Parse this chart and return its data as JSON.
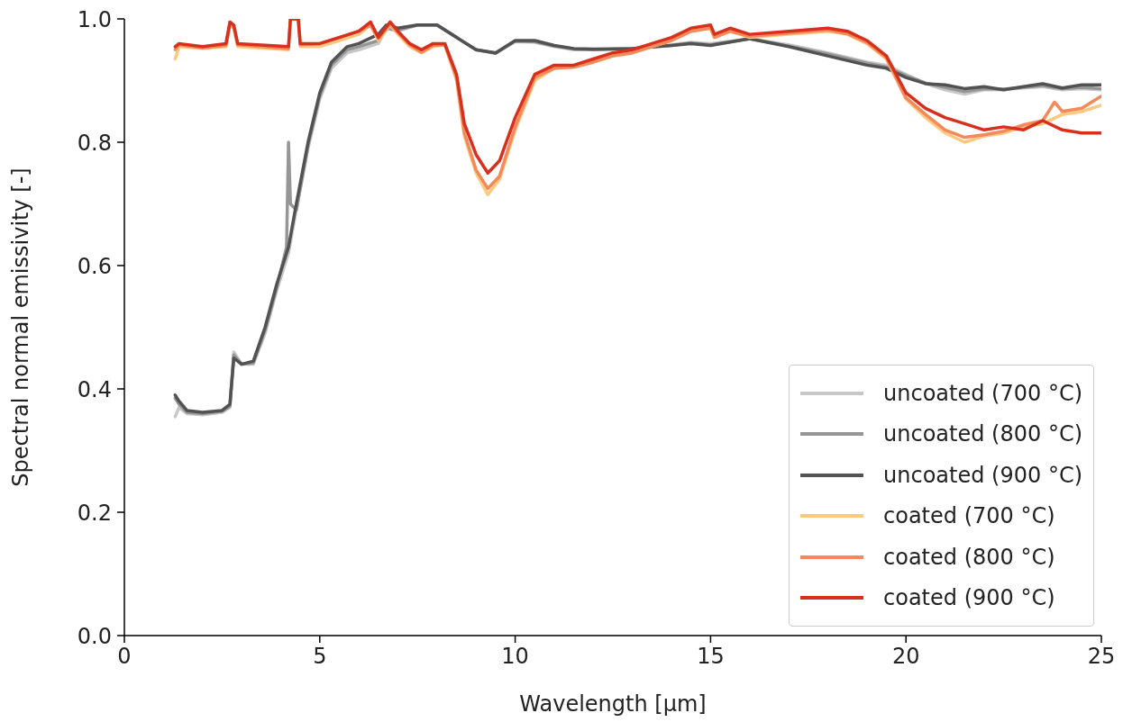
{
  "chart_data": {
    "type": "line",
    "xlabel": "Wavelength [µm]",
    "ylabel": "Spectral normal emissivity [-]",
    "xlim": [
      0,
      25
    ],
    "ylim": [
      0,
      1
    ],
    "xticks": [
      0,
      5,
      10,
      15,
      20,
      25
    ],
    "yticks": [
      {
        "value": 0,
        "label": "0.0"
      },
      0.2,
      0.4,
      0.6,
      0.8,
      {
        "value": 1,
        "label": "1.0"
      }
    ],
    "grid": false,
    "legend": "bottom right",
    "marker": "none",
    "line_style": "solid",
    "series": [
      {
        "name": "uncoated (700 °C)",
        "color": "#c8c8c8",
        "x": [
          1.3,
          1.4,
          1.6,
          2.0,
          2.5,
          2.7,
          2.8,
          3.0,
          3.3,
          3.6,
          3.9,
          4.2,
          4.4,
          4.7,
          5.0,
          5.3,
          5.7,
          6.0,
          6.5,
          6.7,
          7.0,
          7.5,
          8.0,
          8.5,
          9.0,
          9.5,
          10.0,
          10.5,
          11.0,
          11.5,
          12,
          13,
          14,
          14.5,
          15,
          16,
          17,
          18,
          19,
          19.5,
          20,
          20.5,
          21,
          21.5,
          22,
          22.5,
          23,
          23.5,
          24,
          24.5,
          25
        ],
        "values": [
          0.355,
          0.37,
          0.36,
          0.358,
          0.362,
          0.37,
          0.46,
          0.44,
          0.44,
          0.49,
          0.56,
          0.62,
          0.69,
          0.79,
          0.87,
          0.92,
          0.945,
          0.95,
          0.96,
          0.985,
          0.98,
          0.99,
          0.99,
          0.97,
          0.95,
          0.945,
          0.963,
          0.962,
          0.955,
          0.95,
          0.95,
          0.952,
          0.958,
          0.962,
          0.96,
          0.968,
          0.958,
          0.945,
          0.93,
          0.925,
          0.91,
          0.895,
          0.885,
          0.878,
          0.885,
          0.885,
          0.888,
          0.89,
          0.885,
          0.887,
          0.885
        ]
      },
      {
        "name": "uncoated (800 °C)",
        "color": "#969696",
        "x": [
          1.3,
          1.4,
          1.6,
          2.0,
          2.5,
          2.7,
          2.8,
          3.0,
          3.3,
          3.6,
          3.9,
          4.15,
          4.2,
          4.25,
          4.4,
          4.7,
          5.0,
          5.3,
          5.7,
          6.0,
          6.5,
          6.7,
          7.0,
          7.5,
          8.0,
          8.5,
          9.0,
          9.5,
          10.0,
          10.5,
          11.0,
          11.5,
          12,
          13,
          14,
          14.5,
          15,
          16,
          17,
          18,
          19,
          19.5,
          20,
          20.5,
          21,
          21.5,
          22,
          22.5,
          23,
          23.5,
          24,
          24.5,
          25
        ],
        "values": [
          0.385,
          0.375,
          0.362,
          0.36,
          0.364,
          0.372,
          0.455,
          0.44,
          0.442,
          0.495,
          0.565,
          0.63,
          0.8,
          0.7,
          0.69,
          0.795,
          0.875,
          0.925,
          0.95,
          0.955,
          0.965,
          0.985,
          0.982,
          0.99,
          0.99,
          0.97,
          0.95,
          0.944,
          0.964,
          0.963,
          0.956,
          0.951,
          0.95,
          0.952,
          0.957,
          0.961,
          0.958,
          0.968,
          0.956,
          0.943,
          0.928,
          0.922,
          0.908,
          0.896,
          0.889,
          0.882,
          0.887,
          0.886,
          0.889,
          0.892,
          0.887,
          0.889,
          0.887
        ]
      },
      {
        "name": "uncoated (900 °C)",
        "color": "#525252",
        "x": [
          1.3,
          1.4,
          1.6,
          2.0,
          2.5,
          2.7,
          2.8,
          3.0,
          3.3,
          3.6,
          3.9,
          4.2,
          4.4,
          4.7,
          5.0,
          5.3,
          5.7,
          6.0,
          6.5,
          6.7,
          7.0,
          7.5,
          8.0,
          8.5,
          9.0,
          9.5,
          10.0,
          10.5,
          11.0,
          11.5,
          12,
          13,
          14,
          14.5,
          15,
          16,
          17,
          18,
          19,
          19.5,
          20,
          20.5,
          21,
          21.5,
          22,
          22.5,
          23,
          23.5,
          24,
          24.5,
          25
        ],
        "values": [
          0.39,
          0.38,
          0.365,
          0.362,
          0.365,
          0.375,
          0.45,
          0.44,
          0.445,
          0.5,
          0.57,
          0.63,
          0.7,
          0.8,
          0.88,
          0.93,
          0.955,
          0.96,
          0.975,
          0.99,
          0.985,
          0.99,
          0.99,
          0.97,
          0.95,
          0.945,
          0.965,
          0.965,
          0.957,
          0.952,
          0.951,
          0.952,
          0.957,
          0.96,
          0.957,
          0.968,
          0.955,
          0.94,
          0.925,
          0.92,
          0.905,
          0.895,
          0.893,
          0.887,
          0.89,
          0.885,
          0.89,
          0.895,
          0.888,
          0.893,
          0.893
        ]
      },
      {
        "name": "coated (700 °C)",
        "color": "#fdc880",
        "x": [
          1.3,
          1.4,
          2.0,
          2.6,
          2.7,
          2.8,
          2.9,
          4.2,
          4.25,
          4.45,
          4.5,
          5.0,
          5.5,
          6.0,
          6.3,
          6.5,
          6.8,
          7.0,
          7.3,
          7.6,
          7.9,
          8.2,
          8.5,
          8.7,
          9.0,
          9.3,
          9.6,
          10.0,
          10.5,
          11.0,
          11.5,
          12,
          12.5,
          13,
          13.5,
          14,
          14.5,
          15,
          15.1,
          15.5,
          16,
          17,
          18,
          18.5,
          19,
          19.5,
          20,
          20.5,
          21,
          21.5,
          22,
          22.5,
          23,
          23.5,
          24,
          24.5,
          25
        ],
        "values": [
          0.935,
          0.955,
          0.952,
          0.955,
          0.99,
          0.985,
          0.955,
          0.95,
          null,
          null,
          0.955,
          0.955,
          0.965,
          0.975,
          0.99,
          0.965,
          0.99,
          0.975,
          0.955,
          0.945,
          0.955,
          0.958,
          0.9,
          0.81,
          0.75,
          0.715,
          0.74,
          0.82,
          0.9,
          0.92,
          0.922,
          0.93,
          0.94,
          0.945,
          0.955,
          0.965,
          0.98,
          0.985,
          0.97,
          0.98,
          0.97,
          0.975,
          0.98,
          0.975,
          0.96,
          0.935,
          0.87,
          0.84,
          0.815,
          0.8,
          0.81,
          0.815,
          0.825,
          0.83,
          0.845,
          0.85,
          0.86
        ]
      },
      {
        "name": "coated (800 °C)",
        "color": "#f4895a",
        "x": [
          1.3,
          1.4,
          2.0,
          2.6,
          2.7,
          2.8,
          2.9,
          4.2,
          4.25,
          4.45,
          4.5,
          5.0,
          5.5,
          6.0,
          6.3,
          6.5,
          6.8,
          7.0,
          7.3,
          7.6,
          7.9,
          8.2,
          8.5,
          8.7,
          9.0,
          9.3,
          9.6,
          10.0,
          10.5,
          11.0,
          11.5,
          12,
          12.5,
          13,
          13.5,
          14,
          14.5,
          15,
          15.1,
          15.5,
          16,
          17,
          18,
          18.5,
          19,
          19.5,
          20,
          20.5,
          21,
          21.5,
          22,
          22.5,
          23,
          23.5,
          23.8,
          24,
          24.5,
          25
        ],
        "values": [
          0.95,
          0.958,
          0.953,
          0.957,
          0.99,
          0.987,
          0.958,
          0.952,
          1.0,
          1.0,
          0.958,
          0.96,
          0.97,
          0.98,
          0.99,
          0.968,
          0.992,
          0.978,
          0.958,
          0.946,
          0.957,
          0.958,
          0.905,
          0.815,
          0.755,
          0.725,
          0.745,
          0.825,
          0.905,
          0.92,
          0.922,
          0.93,
          0.94,
          0.945,
          0.955,
          0.965,
          0.98,
          0.985,
          0.97,
          0.98,
          0.972,
          0.977,
          0.982,
          0.976,
          0.962,
          0.937,
          0.872,
          0.845,
          0.82,
          0.808,
          0.812,
          0.818,
          0.828,
          0.835,
          0.865,
          0.85,
          0.855,
          0.875
        ]
      },
      {
        "name": "coated (900 °C)",
        "color": "#d7301f",
        "x": [
          1.3,
          1.4,
          2.0,
          2.6,
          2.7,
          2.8,
          2.9,
          4.2,
          4.25,
          4.45,
          4.5,
          5.0,
          5.5,
          6.0,
          6.3,
          6.5,
          6.8,
          7.0,
          7.3,
          7.6,
          7.9,
          8.2,
          8.5,
          8.7,
          9.0,
          9.3,
          9.6,
          10.0,
          10.5,
          11.0,
          11.5,
          12,
          12.5,
          13,
          13.5,
          14,
          14.5,
          15,
          15.1,
          15.5,
          16,
          17,
          18,
          18.5,
          19,
          19.5,
          20,
          20.5,
          21,
          21.5,
          22,
          22.5,
          23,
          23.5,
          24,
          24.5,
          25
        ],
        "values": [
          0.955,
          0.96,
          0.955,
          0.96,
          0.995,
          0.99,
          0.96,
          0.955,
          1.0,
          1.0,
          0.96,
          0.96,
          0.97,
          0.98,
          0.995,
          0.97,
          0.995,
          0.98,
          0.96,
          0.95,
          0.96,
          0.96,
          0.91,
          0.83,
          0.78,
          0.75,
          0.77,
          0.84,
          0.91,
          0.925,
          0.925,
          0.935,
          0.945,
          0.95,
          0.96,
          0.97,
          0.985,
          0.99,
          0.975,
          0.985,
          0.975,
          0.98,
          0.985,
          0.98,
          0.965,
          0.94,
          0.88,
          0.855,
          0.84,
          0.83,
          0.82,
          0.825,
          0.82,
          0.835,
          0.82,
          0.815,
          0.815
        ]
      }
    ]
  }
}
